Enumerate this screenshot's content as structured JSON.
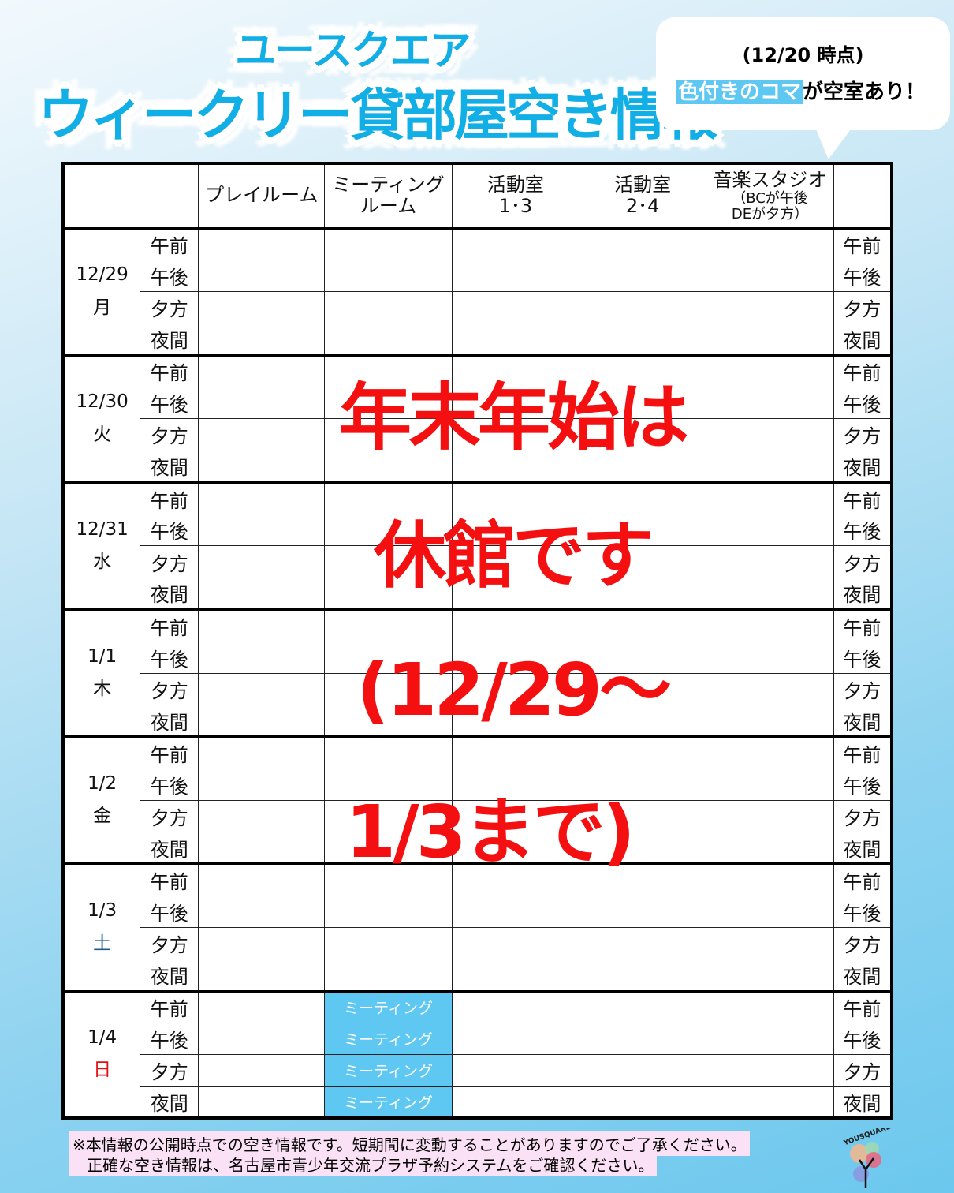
{
  "header": {
    "title_line1": "ユースクエア",
    "title_line2": "ウィークリー貸部屋空き情報"
  },
  "bubble": {
    "as_of": "(12/20 時点)",
    "highlight": "色付きのコマ",
    "note_rest": "が空室あり！"
  },
  "table": {
    "columns": [
      "プレイルーム",
      "ミーティングルーム",
      "活動室1・3",
      "活動室2・4",
      "音楽スタジオ"
    ],
    "column_headers": [
      {
        "line1": "プレイルーム"
      },
      {
        "line1": "ミーティング",
        "line2": "ルーム"
      },
      {
        "line1": "活動室",
        "line2": "1･3"
      },
      {
        "line1": "活動室",
        "line2": "2･4"
      },
      {
        "line1": "音楽スタジオ",
        "small1": "（BCが午後",
        "small2": "DEが夕方）"
      }
    ],
    "slots": [
      "午前",
      "午後",
      "夕方",
      "夜間"
    ],
    "days": [
      {
        "date": "12/29",
        "weekday": "月",
        "color": "#111111",
        "cells": [
          [
            "",
            "",
            "",
            "",
            ""
          ],
          [
            "",
            "",
            "",
            "",
            ""
          ],
          [
            "",
            "",
            "",
            "",
            ""
          ],
          [
            "",
            "",
            "",
            "",
            ""
          ]
        ]
      },
      {
        "date": "12/30",
        "weekday": "火",
        "color": "#111111",
        "cells": [
          [
            "",
            "",
            "",
            "",
            ""
          ],
          [
            "",
            "",
            "",
            "",
            ""
          ],
          [
            "",
            "",
            "",
            "",
            ""
          ],
          [
            "",
            "",
            "",
            "",
            ""
          ]
        ]
      },
      {
        "date": "12/31",
        "weekday": "水",
        "color": "#111111",
        "cells": [
          [
            "",
            "",
            "",
            "",
            ""
          ],
          [
            "",
            "",
            "",
            "",
            ""
          ],
          [
            "",
            "",
            "",
            "",
            ""
          ],
          [
            "",
            "",
            "",
            "",
            ""
          ]
        ]
      },
      {
        "date": "1/1",
        "weekday": "木",
        "color": "#111111",
        "cells": [
          [
            "",
            "",
            "",
            "",
            ""
          ],
          [
            "",
            "",
            "",
            "",
            ""
          ],
          [
            "",
            "",
            "",
            "",
            ""
          ],
          [
            "",
            "",
            "",
            "",
            ""
          ]
        ]
      },
      {
        "date": "1/2",
        "weekday": "金",
        "color": "#111111",
        "cells": [
          [
            "",
            "",
            "",
            "",
            ""
          ],
          [
            "",
            "",
            "",
            "",
            ""
          ],
          [
            "",
            "",
            "",
            "",
            ""
          ],
          [
            "",
            "",
            "",
            "",
            ""
          ]
        ]
      },
      {
        "date": "1/3",
        "weekday": "土",
        "color": "#1b5c8c",
        "cells": [
          [
            "",
            "",
            "",
            "",
            ""
          ],
          [
            "",
            "",
            "",
            "",
            ""
          ],
          [
            "",
            "",
            "",
            "",
            ""
          ],
          [
            "",
            "",
            "",
            "",
            ""
          ]
        ]
      },
      {
        "date": "1/4",
        "weekday": "日",
        "color": "#e01010",
        "cells": [
          [
            "",
            "ミーティング",
            "",
            "",
            ""
          ],
          [
            "",
            "ミーティング",
            "",
            "",
            ""
          ],
          [
            "",
            "ミーティング",
            "",
            "",
            ""
          ],
          [
            "",
            "ミーティング",
            "",
            "",
            ""
          ]
        ]
      }
    ]
  },
  "overlay": {
    "lines": [
      "年末年始は",
      "休館です",
      "(12/29～",
      "1/3まで)"
    ]
  },
  "footer": {
    "line1": "※本情報の公開時点での空き情報です。短期間に変動することがありますのでご了承ください。",
    "line2": "正確な空き情報は、名古屋市青少年交流プラザ予約システムをご確認ください。"
  },
  "logo": {
    "text": "YOUSQUARE"
  },
  "colors": {
    "available": "#5ec8f2",
    "closed_notice": "#f41010",
    "title": "#12aee6"
  }
}
